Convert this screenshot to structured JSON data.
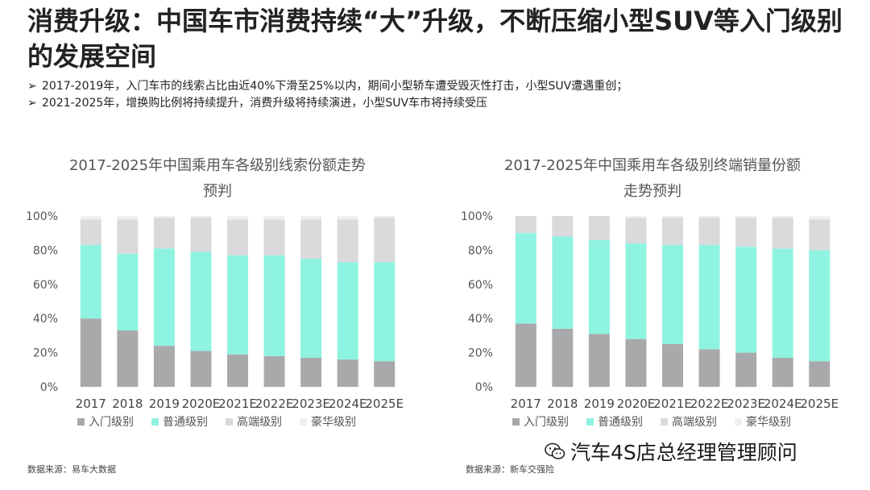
{
  "title": "消费升级：中国车市消费持续“大”升级，不断压缩小型SUV等入门级别的发展空间",
  "bullets": [
    "2017-2019年，入门车市的线索占比由近40%下滑至25%以内，期间小型轿车遭受毁灭性打击，小型SUV遭遇重创；",
    "2021-2025年，增换购比例将持续提升，消费升级将持续演进，小型SUV车市将持续受压"
  ],
  "bullet_marker": "➢",
  "source_left": "数据来源：易车大数据",
  "source_right": "数据来源：新车交强险",
  "watermark": "汽车4S店总经理管理顾问",
  "colors": {
    "entry": "#a9a9ab",
    "standard": "#8ff3e1",
    "premium": "#dadadc",
    "luxury": "#f0f0f0"
  },
  "chart_data": [
    {
      "type": "bar",
      "stacked": true,
      "title": "2017-2025年中国乘用车各级别线索份额走势",
      "subtitle": "预判",
      "categories": [
        "2017",
        "2018",
        "2019",
        "2020E",
        "2021E",
        "2022E",
        "2023E",
        "2024E",
        "2025E"
      ],
      "yticks": [
        "0%",
        "20%",
        "40%",
        "60%",
        "80%",
        "100%"
      ],
      "ylim": [
        0,
        100
      ],
      "legend_position": "bottom-left",
      "series": [
        {
          "name": "入门级别",
          "values": [
            40,
            33,
            24,
            21,
            19,
            18,
            17,
            16,
            15
          ]
        },
        {
          "name": "普通级别",
          "values": [
            43,
            45,
            57,
            58,
            58,
            59,
            58,
            57,
            58
          ]
        },
        {
          "name": "高端级别",
          "values": [
            15,
            20,
            18,
            20,
            21,
            21,
            23,
            25,
            26
          ]
        },
        {
          "name": "豪华级别",
          "values": [
            2,
            2,
            1,
            1,
            2,
            2,
            2,
            2,
            1
          ]
        }
      ]
    },
    {
      "type": "bar",
      "stacked": true,
      "title": "2017-2025年中国乘用车各级别终端销量份额",
      "subtitle": "走势预判",
      "categories": [
        "2017",
        "2018",
        "2019",
        "2020E",
        "2021E",
        "2022E",
        "2023E",
        "2024E",
        "2025E"
      ],
      "yticks": [
        "0%",
        "20%",
        "40%",
        "60%",
        "80%",
        "100%"
      ],
      "ylim": [
        0,
        100
      ],
      "legend_position": "bottom-left",
      "series": [
        {
          "name": "入门级别",
          "values": [
            37,
            34,
            31,
            28,
            25,
            22,
            20,
            17,
            15
          ]
        },
        {
          "name": "普通级别",
          "values": [
            53,
            54,
            55,
            56,
            58,
            61,
            62,
            64,
            65
          ]
        },
        {
          "name": "高端级别",
          "values": [
            10,
            12,
            14,
            15,
            16,
            16,
            17,
            18,
            18
          ]
        },
        {
          "name": "豪华级别",
          "values": [
            0,
            0,
            0,
            1,
            1,
            1,
            1,
            1,
            2
          ]
        }
      ]
    }
  ]
}
